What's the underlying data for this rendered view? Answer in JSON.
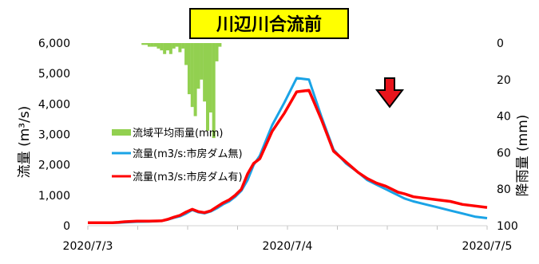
{
  "chart_data": {
    "type": "line",
    "title": "川辺川合流前",
    "ylabel": "流量 (m³/s)",
    "y2label": "降雨量 (mm)",
    "x_ticks": [
      "2020/7/3",
      "2020/7/4",
      "2020/7/5"
    ],
    "x_range": [
      "2020/7/3 00:00",
      "2020/7/5 00:00"
    ],
    "ylim": [
      0,
      6000
    ],
    "y_ticks": [
      "0",
      "1,000",
      "2,000",
      "3,000",
      "4,000",
      "5,000",
      "6,000"
    ],
    "y2lim": [
      0,
      100
    ],
    "y2_inverted": true,
    "y2_ticks": [
      "0",
      "20",
      "40",
      "60",
      "80",
      "100"
    ],
    "legend_position": "left-center",
    "grid": false,
    "rain": {
      "name": "流域平均雨量(mm)",
      "color": "#92d050",
      "x_hours": [
        18,
        19,
        20,
        21,
        22,
        23,
        24,
        25,
        26,
        27,
        28,
        29,
        30,
        31,
        32,
        33,
        34,
        35,
        36,
        37,
        38,
        39,
        40,
        41,
        42,
        43
      ],
      "values": [
        1,
        1,
        2,
        2,
        2,
        3,
        4,
        6,
        4,
        6,
        3,
        2,
        5,
        3,
        12,
        28,
        35,
        40,
        25,
        20,
        32,
        48,
        38,
        52,
        10,
        2
      ]
    },
    "series": [
      {
        "name": "流量(m3/s:市房ダム無)",
        "color": "#1aa3e6",
        "x_hours": [
          0,
          8,
          10,
          12,
          16,
          20,
          24,
          26,
          28,
          30,
          32,
          34,
          36,
          38,
          40,
          42,
          44,
          46,
          48,
          50,
          52,
          54,
          56,
          58,
          60,
          64,
          68,
          72,
          76,
          80,
          84,
          88,
          91,
          94,
          97,
          99,
          101,
          103,
          106,
          110,
          114,
          118,
          122,
          126,
          130
        ],
        "values": [
          100,
          100,
          100,
          110,
          130,
          140,
          160,
          200,
          260,
          310,
          400,
          520,
          440,
          410,
          470,
          570,
          700,
          800,
          950,
          1150,
          1500,
          2000,
          2300,
          2800,
          3300,
          4050,
          4850,
          4800,
          3600,
          2500,
          2050,
          1750,
          1500,
          1350,
          1200,
          1100,
          1000,
          900,
          800,
          700,
          600,
          500,
          400,
          300,
          250
        ]
      },
      {
        "name": "流量(m3/s:市房ダム有)",
        "color": "#ff0000",
        "x_hours": [
          0,
          8,
          10,
          12,
          16,
          20,
          24,
          26,
          28,
          30,
          32,
          34,
          36,
          38,
          40,
          42,
          44,
          46,
          48,
          50,
          52,
          54,
          56,
          58,
          60,
          64,
          68,
          72,
          76,
          80,
          84,
          88,
          91,
          94,
          97,
          99,
          101,
          103,
          106,
          110,
          114,
          118,
          122,
          126,
          130
        ],
        "values": [
          100,
          100,
          110,
          130,
          150,
          150,
          160,
          210,
          280,
          340,
          450,
          540,
          460,
          430,
          490,
          620,
          750,
          850,
          1000,
          1200,
          1700,
          2050,
          2200,
          2650,
          3100,
          3700,
          4400,
          4450,
          3500,
          2450,
          2100,
          1750,
          1550,
          1400,
          1300,
          1200,
          1100,
          1050,
          950,
          900,
          850,
          800,
          700,
          650,
          600
        ]
      }
    ]
  },
  "annotation": {
    "peak_marker": "down-arrow",
    "marker_color": "#ff0000"
  }
}
